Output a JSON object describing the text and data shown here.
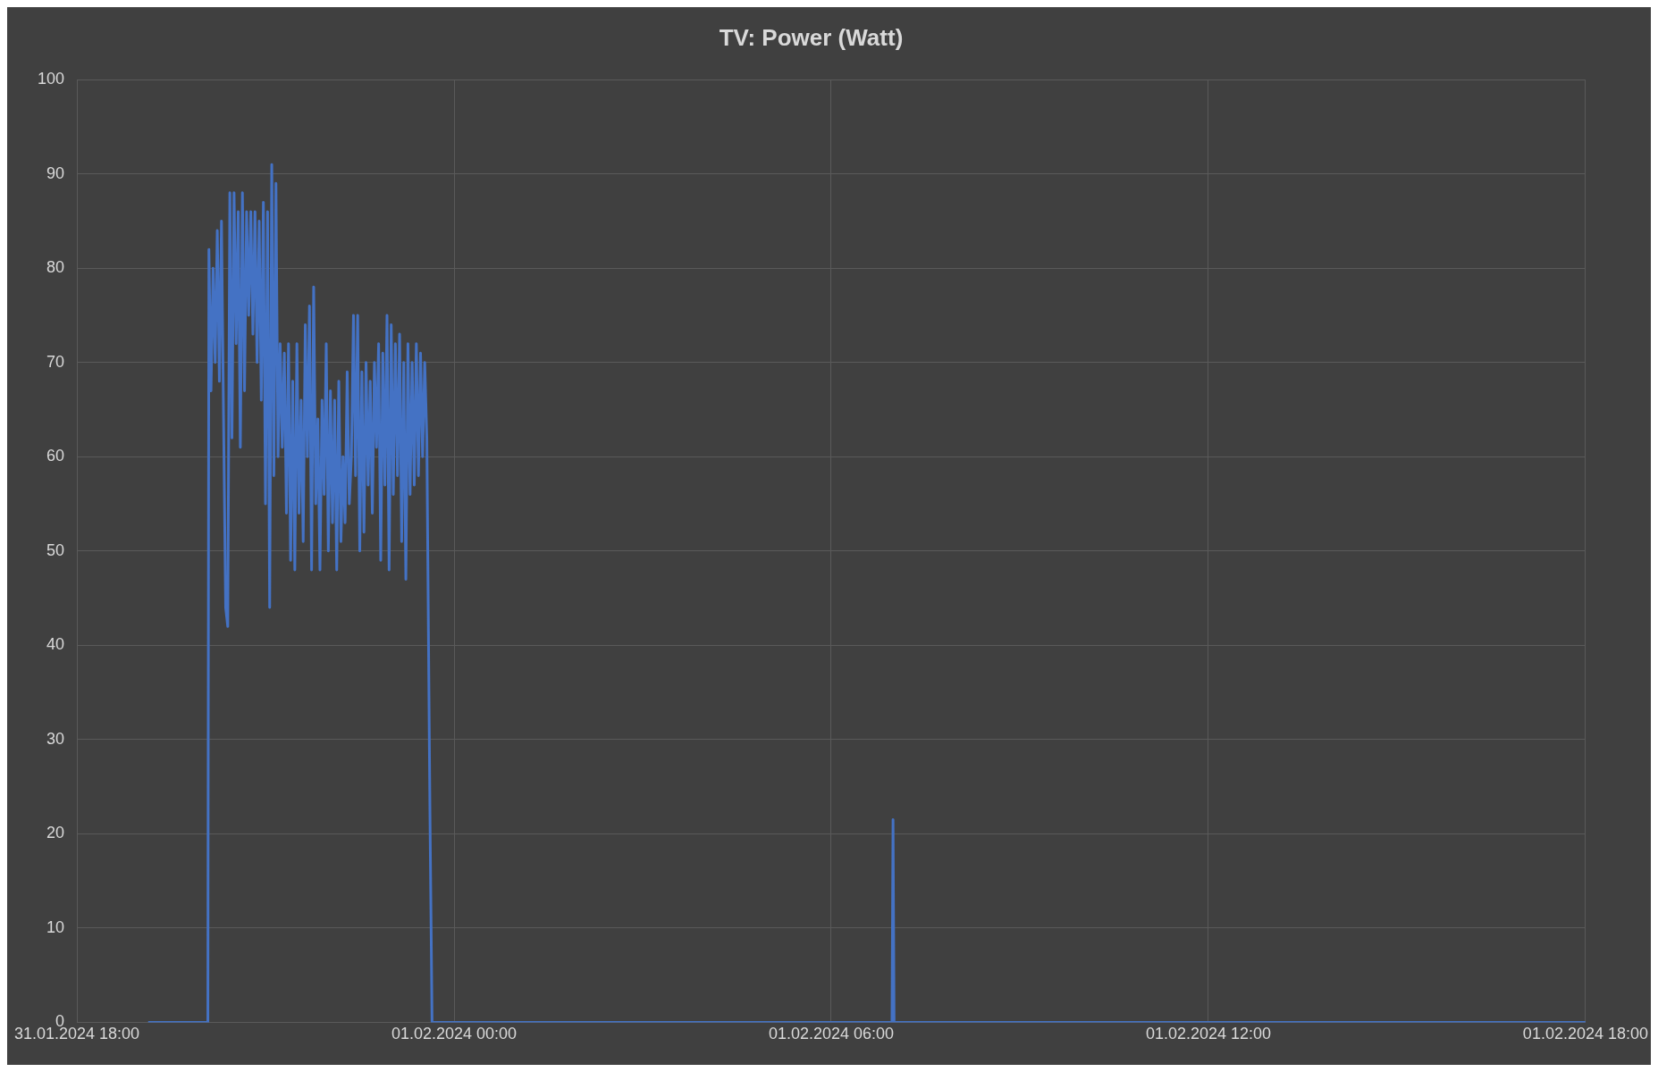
{
  "chart_data": {
    "type": "line",
    "title": "TV: Power (Watt)",
    "x": [
      "2024-01-31T19:08",
      "2024-01-31T20:05",
      "2024-01-31T20:06",
      "2024-01-31T20:08",
      "2024-01-31T20:10",
      "2024-01-31T20:12",
      "2024-01-31T20:14",
      "2024-01-31T20:16",
      "2024-01-31T20:18",
      "2024-01-31T20:20",
      "2024-01-31T20:22",
      "2024-01-31T20:24",
      "2024-01-31T20:26",
      "2024-01-31T20:28",
      "2024-01-31T20:30",
      "2024-01-31T20:32",
      "2024-01-31T20:34",
      "2024-01-31T20:36",
      "2024-01-31T20:38",
      "2024-01-31T20:40",
      "2024-01-31T20:42",
      "2024-01-31T20:44",
      "2024-01-31T20:46",
      "2024-01-31T20:48",
      "2024-01-31T20:50",
      "2024-01-31T20:52",
      "2024-01-31T20:54",
      "2024-01-31T20:56",
      "2024-01-31T20:58",
      "2024-01-31T21:00",
      "2024-01-31T21:02",
      "2024-01-31T21:04",
      "2024-01-31T21:06",
      "2024-01-31T21:08",
      "2024-01-31T21:10",
      "2024-01-31T21:12",
      "2024-01-31T21:14",
      "2024-01-31T21:16",
      "2024-01-31T21:18",
      "2024-01-31T21:20",
      "2024-01-31T21:22",
      "2024-01-31T21:24",
      "2024-01-31T21:26",
      "2024-01-31T21:28",
      "2024-01-31T21:30",
      "2024-01-31T21:32",
      "2024-01-31T21:34",
      "2024-01-31T21:36",
      "2024-01-31T21:38",
      "2024-01-31T21:40",
      "2024-01-31T21:42",
      "2024-01-31T21:44",
      "2024-01-31T21:46",
      "2024-01-31T21:48",
      "2024-01-31T21:50",
      "2024-01-31T21:52",
      "2024-01-31T21:54",
      "2024-01-31T21:56",
      "2024-01-31T21:58",
      "2024-01-31T22:00",
      "2024-01-31T22:02",
      "2024-01-31T22:04",
      "2024-01-31T22:06",
      "2024-01-31T22:08",
      "2024-01-31T22:10",
      "2024-01-31T22:12",
      "2024-01-31T22:14",
      "2024-01-31T22:16",
      "2024-01-31T22:18",
      "2024-01-31T22:20",
      "2024-01-31T22:22",
      "2024-01-31T22:24",
      "2024-01-31T22:26",
      "2024-01-31T22:28",
      "2024-01-31T22:30",
      "2024-01-31T22:32",
      "2024-01-31T22:34",
      "2024-01-31T22:36",
      "2024-01-31T22:38",
      "2024-01-31T22:40",
      "2024-01-31T22:42",
      "2024-01-31T22:44",
      "2024-01-31T22:46",
      "2024-01-31T22:48",
      "2024-01-31T22:50",
      "2024-01-31T22:52",
      "2024-01-31T22:54",
      "2024-01-31T22:56",
      "2024-01-31T22:58",
      "2024-01-31T23:00",
      "2024-01-31T23:02",
      "2024-01-31T23:04",
      "2024-01-31T23:06",
      "2024-01-31T23:08",
      "2024-01-31T23:10",
      "2024-01-31T23:12",
      "2024-01-31T23:14",
      "2024-01-31T23:16",
      "2024-01-31T23:18",
      "2024-01-31T23:20",
      "2024-01-31T23:22",
      "2024-01-31T23:24",
      "2024-01-31T23:26",
      "2024-01-31T23:28",
      "2024-01-31T23:30",
      "2024-01-31T23:32",
      "2024-01-31T23:34",
      "2024-01-31T23:37",
      "2024-01-31T23:39",
      "2024-02-01T06:58",
      "2024-02-01T06:59",
      "2024-02-01T07:00",
      "2024-02-01T18:00"
    ],
    "series": [
      {
        "color": "#4472c4",
        "values": [
          0,
          0,
          82,
          67,
          80,
          70,
          84,
          68,
          85,
          64,
          44,
          42,
          88,
          62,
          88,
          72,
          86,
          61,
          88,
          67,
          86,
          75,
          86,
          73,
          86,
          70,
          85,
          66,
          87,
          55,
          86,
          44,
          91,
          58,
          89,
          60,
          72,
          61,
          71,
          54,
          72,
          49,
          68,
          48,
          72,
          54,
          66,
          51,
          74,
          60,
          76,
          48,
          78,
          55,
          64,
          48,
          66,
          56,
          72,
          50,
          67,
          53,
          66,
          48,
          68,
          51,
          60,
          53,
          69,
          55,
          60,
          75,
          58,
          75,
          50,
          69,
          52,
          70,
          57,
          68,
          54,
          70,
          61,
          72,
          49,
          71,
          57,
          75,
          48,
          74,
          56,
          72,
          58,
          73,
          51,
          70,
          47,
          72,
          56,
          70,
          57,
          72,
          58,
          71,
          60,
          70,
          62,
          22,
          0,
          0,
          21.5,
          0,
          0
        ]
      }
    ],
    "xlim": [
      "2024-01-31T18:00",
      "2024-02-01T18:00"
    ],
    "xticks": [
      {
        "value": "2024-01-31T18:00",
        "label": "31.01.2024 18:00"
      },
      {
        "value": "2024-02-01T00:00",
        "label": "01.02.2024 00:00"
      },
      {
        "value": "2024-02-01T06:00",
        "label": "01.02.2024 06:00"
      },
      {
        "value": "2024-02-01T12:00",
        "label": "01.02.2024 12:00"
      },
      {
        "value": "2024-02-01T18:00",
        "label": "01.02.2024 18:00"
      }
    ],
    "ylim": [
      0,
      100
    ],
    "yticks": [
      0,
      10,
      20,
      30,
      40,
      50,
      60,
      70,
      80,
      90,
      100
    ],
    "grid": true,
    "marker": "none",
    "line_style": "solid"
  }
}
